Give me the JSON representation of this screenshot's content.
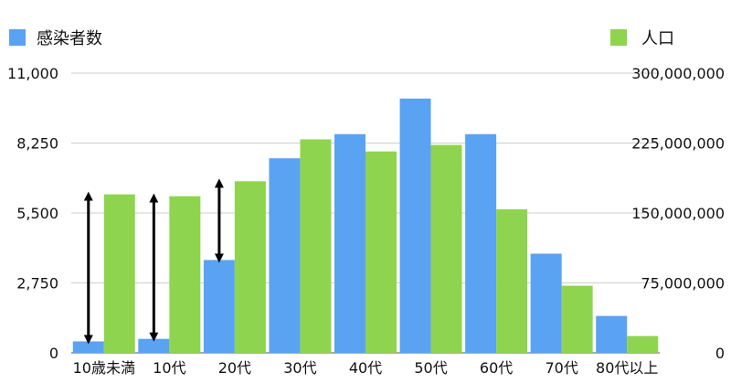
{
  "chart_data": {
    "type": "bar",
    "categories": [
      "10歳未満",
      "10代",
      "20代",
      "30代",
      "40代",
      "50代",
      "60代",
      "70代",
      "80代以上"
    ],
    "series": [
      {
        "name": "感染者数",
        "axis": "left",
        "color": "#5aa2f2",
        "values": [
          450,
          550,
          3650,
          7650,
          8600,
          10000,
          8600,
          3900,
          1450
        ]
      },
      {
        "name": "人口",
        "axis": "right",
        "color": "#8fd44e",
        "values": [
          170000000,
          168000000,
          184000000,
          229000000,
          216000000,
          223000000,
          154000000,
          72000000,
          18000000
        ]
      }
    ],
    "y_left": {
      "ylim": [
        0,
        11000
      ],
      "ticks": [
        0,
        2750,
        5500,
        8250,
        11000
      ],
      "tick_labels": [
        "0",
        "2,750",
        "5,500",
        "8,250",
        "11,000"
      ]
    },
    "y_right": {
      "ylim": [
        0,
        300000000
      ],
      "ticks": [
        0,
        75000000,
        150000000,
        225000000,
        300000000
      ],
      "tick_labels": [
        "0",
        "75,000,000",
        "150,000,000",
        "225,000,000",
        "300,000,000"
      ]
    },
    "grid": true,
    "legend": "top",
    "annotations": [
      {
        "type": "double-arrow",
        "category_index": 0
      },
      {
        "type": "double-arrow",
        "category_index": 1
      },
      {
        "type": "double-arrow",
        "category_index": 2
      }
    ]
  }
}
